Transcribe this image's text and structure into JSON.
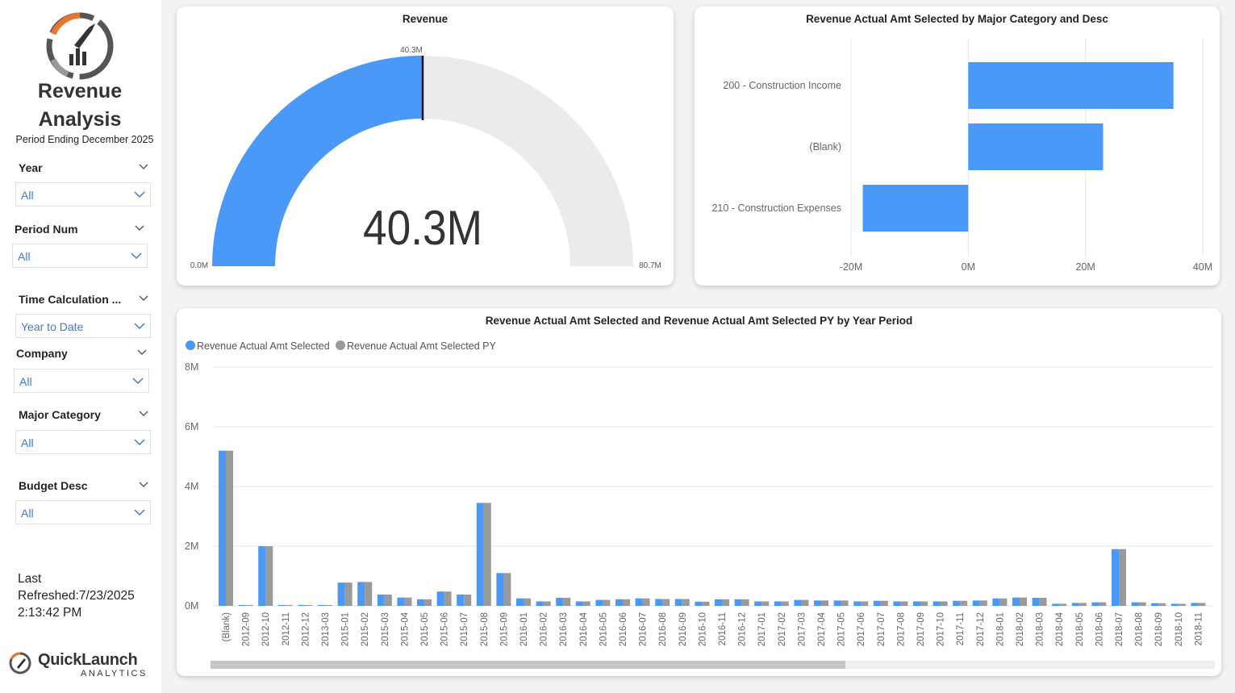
{
  "sidebar": {
    "title_line1": "Revenue",
    "title_line2": "Analysis",
    "period": "Period Ending December 2025",
    "slicers": [
      {
        "label": "Year",
        "value": "All"
      },
      {
        "label": "Period Num",
        "value": "All"
      },
      {
        "label": "Time Calculation ...",
        "value": "Year to Date"
      },
      {
        "label": "Company",
        "value": "All"
      },
      {
        "label": "Major Category",
        "value": "All"
      },
      {
        "label": "Budget Desc",
        "value": "All"
      }
    ],
    "refresh_line1": "Last",
    "refresh_line2": "Refreshed:7/23/2025",
    "refresh_line3": "2:13:42 PM",
    "brand_name": "QuickLaunch",
    "brand_sub": "ANALYTICS"
  },
  "gauge": {
    "title": "Revenue",
    "value_label": "40.3M",
    "target_label": "40.3M",
    "min_label": "0.0M",
    "max_label": "80.7M",
    "fraction": 0.5,
    "fill_color": "#4a98f7",
    "track_color": "#ebebeb"
  },
  "bar_chart": {
    "title": "Revenue Actual Amt Selected by Major Category and Desc",
    "chart_data": {
      "type": "bar",
      "orientation": "horizontal",
      "categories": [
        "200 - Construction Income",
        "(Blank)",
        "210 - Construction Expenses"
      ],
      "values": [
        35,
        23,
        -18
      ],
      "xlim": [
        -20,
        40
      ],
      "xticks": [
        -20,
        0,
        20,
        40
      ],
      "xtick_labels": [
        "-20M",
        "0M",
        "20M",
        "40M"
      ],
      "color": "#4a98f7",
      "grid": true
    }
  },
  "column_chart": {
    "title": "Revenue Actual Amt Selected and Revenue Actual Amt Selected PY by Year Period",
    "chart_data": {
      "type": "bar",
      "categories": [
        "(Blank)",
        "2012-09",
        "2012-10",
        "2012-11",
        "2012-12",
        "2013-03",
        "2015-01",
        "2015-02",
        "2015-03",
        "2015-04",
        "2015-05",
        "2015-06",
        "2015-07",
        "2015-08",
        "2015-09",
        "2016-01",
        "2016-02",
        "2016-03",
        "2016-04",
        "2016-05",
        "2016-06",
        "2016-07",
        "2016-08",
        "2016-09",
        "2016-10",
        "2016-11",
        "2016-12",
        "2017-01",
        "2017-02",
        "2017-03",
        "2017-04",
        "2017-05",
        "2017-06",
        "2017-07",
        "2017-08",
        "2017-09",
        "2017-10",
        "2017-11",
        "2017-12",
        "2018-01",
        "2018-02",
        "2018-03",
        "2018-04",
        "2018-05",
        "2018-06",
        "2018-07",
        "2018-08",
        "2018-09",
        "2018-10",
        "2018-11"
      ],
      "series": [
        {
          "name": "Revenue Actual Amt Selected",
          "color": "#4a98f7",
          "values": [
            5.2,
            0.03,
            2.0,
            0.03,
            0.03,
            0.03,
            0.78,
            0.8,
            0.38,
            0.28,
            0.22,
            0.48,
            0.38,
            3.45,
            1.1,
            0.25,
            0.15,
            0.27,
            0.15,
            0.2,
            0.22,
            0.25,
            0.23,
            0.23,
            0.14,
            0.22,
            0.22,
            0.15,
            0.15,
            0.2,
            0.18,
            0.18,
            0.15,
            0.17,
            0.15,
            0.15,
            0.15,
            0.17,
            0.18,
            0.25,
            0.28,
            0.27,
            0.07,
            0.1,
            0.12,
            1.9,
            0.12,
            0.09,
            0.07,
            0.1
          ]
        },
        {
          "name": "Revenue Actual Amt Selected PY",
          "color": "#9a9a9a",
          "values": [
            5.2,
            0.03,
            2.0,
            0.03,
            0.03,
            0.03,
            0.78,
            0.8,
            0.38,
            0.28,
            0.22,
            0.48,
            0.38,
            3.45,
            1.1,
            0.25,
            0.15,
            0.27,
            0.15,
            0.2,
            0.22,
            0.25,
            0.23,
            0.23,
            0.14,
            0.22,
            0.22,
            0.15,
            0.15,
            0.2,
            0.18,
            0.18,
            0.15,
            0.17,
            0.15,
            0.15,
            0.15,
            0.17,
            0.18,
            0.25,
            0.28,
            0.27,
            0.07,
            0.1,
            0.12,
            1.9,
            0.12,
            0.09,
            0.07,
            0.1
          ]
        }
      ],
      "ylim": [
        0,
        8
      ],
      "yticks": [
        0,
        2,
        4,
        6,
        8
      ],
      "ytick_labels": [
        "0M",
        "2M",
        "4M",
        "6M",
        "8M"
      ],
      "legend": "top-left",
      "grid": true
    }
  }
}
